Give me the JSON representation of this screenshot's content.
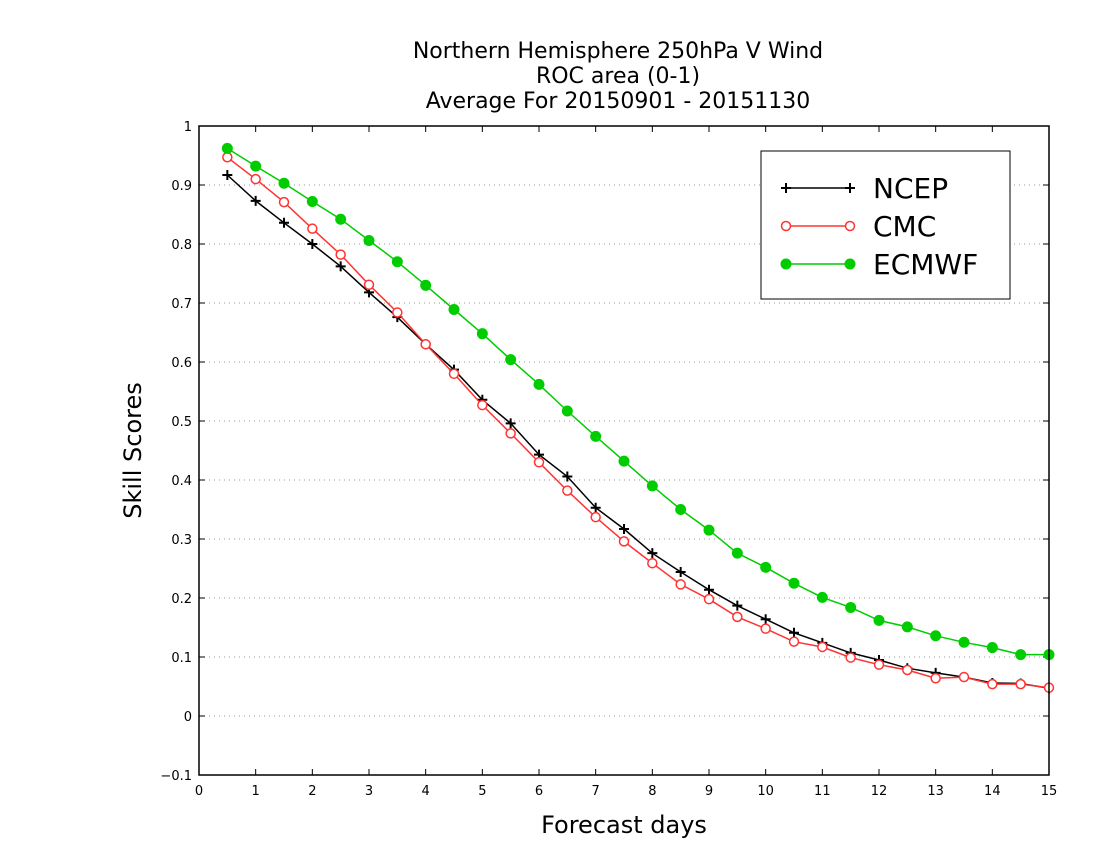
{
  "chart_data": {
    "type": "line",
    "title": [
      "Northern Hemisphere 250hPa V Wind",
      "ROC area (0-1)",
      "Average For 20150901 - 20151130"
    ],
    "xlabel": "Forecast days",
    "ylabel": "Skill Scores",
    "xlim": [
      0,
      15
    ],
    "ylim": [
      -0.1,
      1
    ],
    "x_ticks": [
      0,
      1,
      2,
      3,
      4,
      5,
      6,
      7,
      8,
      9,
      10,
      11,
      12,
      13,
      14,
      15
    ],
    "x_tick_labels": [
      "0",
      "1",
      "2",
      "3",
      "4",
      "5",
      "6",
      "7",
      "8",
      "9",
      "10",
      "11",
      "12",
      "13",
      "14",
      "15"
    ],
    "y_ticks": [
      -0.1,
      0,
      0.1,
      0.2,
      0.3,
      0.4,
      0.5,
      0.6,
      0.7,
      0.8,
      0.9,
      1
    ],
    "y_tick_labels": [
      "−0.1",
      "0",
      "0.1",
      "0.2",
      "0.3",
      "0.4",
      "0.5",
      "0.6",
      "0.7",
      "0.8",
      "0.9",
      "1"
    ],
    "grid": "horizontal dotted",
    "legend_position": "top-right",
    "x": [
      0.5,
      1,
      1.5,
      2,
      2.5,
      3,
      3.5,
      4,
      4.5,
      5,
      5.5,
      6,
      6.5,
      7,
      7.5,
      8,
      8.5,
      9,
      9.5,
      10,
      10.5,
      11,
      11.5,
      12,
      12.5,
      13,
      13.5,
      14,
      14.5,
      15
    ],
    "series": [
      {
        "name": "NCEP",
        "color": "#000000",
        "marker": "plus",
        "values": [
          0.917,
          0.873,
          0.836,
          0.8,
          0.762,
          0.718,
          0.676,
          0.63,
          0.587,
          0.536,
          0.496,
          0.443,
          0.406,
          0.353,
          0.317,
          0.276,
          0.244,
          0.214,
          0.187,
          0.164,
          0.141,
          0.124,
          0.107,
          0.095,
          0.081,
          0.073,
          0.066,
          0.056,
          0.055,
          0.047
        ]
      },
      {
        "name": "CMC",
        "color": "#ff3333",
        "marker": "open-circle",
        "values": [
          0.947,
          0.91,
          0.871,
          0.826,
          0.782,
          0.731,
          0.684,
          0.63,
          0.58,
          0.527,
          0.479,
          0.43,
          0.382,
          0.337,
          0.296,
          0.259,
          0.223,
          0.198,
          0.168,
          0.148,
          0.126,
          0.117,
          0.099,
          0.087,
          0.078,
          0.064,
          0.066,
          0.054,
          0.054,
          0.048
        ]
      },
      {
        "name": "ECMWF",
        "color": "#00cc00",
        "marker": "filled-circle",
        "values": [
          0.962,
          0.932,
          0.903,
          0.872,
          0.842,
          0.806,
          0.77,
          0.73,
          0.689,
          0.648,
          0.604,
          0.562,
          0.517,
          0.474,
          0.432,
          0.39,
          0.35,
          0.315,
          0.276,
          0.252,
          0.225,
          0.201,
          0.184,
          0.162,
          0.151,
          0.136,
          0.125,
          0.116,
          0.104,
          0.104
        ]
      }
    ]
  }
}
